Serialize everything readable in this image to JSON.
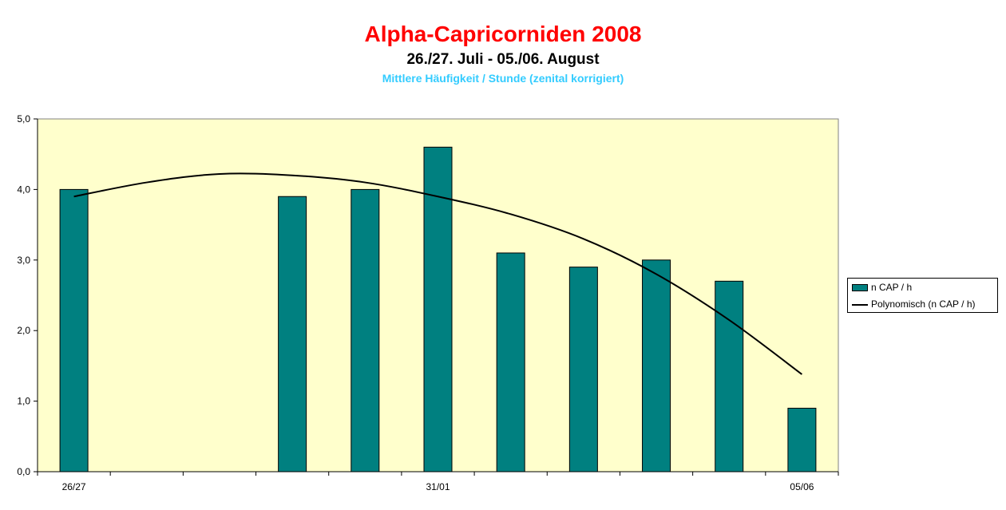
{
  "chart_data": {
    "type": "bar",
    "title": "Alpha-Capricorniden 2008",
    "subtitle": "26./27. Juli - 05./06. August",
    "note": "Mittlere Häufigkeit / Stunde (zenital korrigiert)",
    "categories": [
      "26/27",
      "",
      "",
      "",
      "",
      "31/01",
      "",
      "",
      "",
      "",
      "05/06"
    ],
    "category_label_indices": [
      0,
      5,
      10
    ],
    "ylim": [
      0,
      5
    ],
    "yticks": [
      "0,0",
      "1,0",
      "2,0",
      "3,0",
      "4,0",
      "5,0"
    ],
    "grid": false,
    "plot_background": "#ffffcc",
    "series": [
      {
        "name": "n CAP / h",
        "type": "bar",
        "color": "#008080",
        "values": [
          4.0,
          null,
          null,
          3.9,
          4.0,
          4.6,
          3.1,
          2.9,
          3.0,
          2.7,
          0.9
        ]
      },
      {
        "name": "Polynomisch (n CAP / h)",
        "type": "trendline",
        "color": "#000000",
        "polynomial_order": 2,
        "values": [
          3.9,
          4.1,
          4.22,
          4.2,
          4.1,
          3.9,
          3.65,
          3.3,
          2.8,
          2.15,
          1.38
        ]
      }
    ],
    "legend_position": "right"
  }
}
